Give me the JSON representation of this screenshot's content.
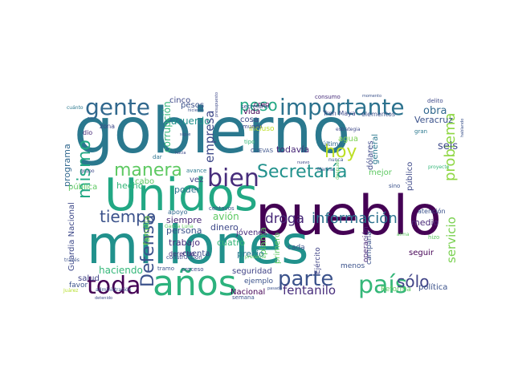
{
  "cloud": {
    "words": [
      {
        "text": "gobierno",
        "color": "#2a788e"
      },
      {
        "text": "pueblo",
        "color": "#440154"
      },
      {
        "text": "millones",
        "color": "#21918c"
      },
      {
        "text": "Unidos",
        "color": "#22a884"
      },
      {
        "text": "años",
        "color": "#2db27d"
      },
      {
        "text": "importante",
        "color": "#2c728e"
      },
      {
        "text": "toda",
        "color": "#440154"
      },
      {
        "text": "país",
        "color": "#35b779"
      },
      {
        "text": "parte",
        "color": "#3b528b"
      },
      {
        "text": "gente",
        "color": "#31688e"
      },
      {
        "text": "bien",
        "color": "#472d7b"
      },
      {
        "text": "mismo",
        "color": "#22a884"
      },
      {
        "text": "Secretaría",
        "color": "#21918c"
      },
      {
        "text": "problema",
        "color": "#8fd744"
      },
      {
        "text": "manera",
        "color": "#5ec962"
      },
      {
        "text": "tiempo",
        "color": "#3b528b"
      },
      {
        "text": "hoy",
        "color": "#bddf26"
      },
      {
        "text": "información",
        "color": "#2c728e"
      },
      {
        "text": "peso",
        "color": "#22a884"
      },
      {
        "text": "droga",
        "color": "#482878"
      },
      {
        "text": "fentanilo",
        "color": "#472d7b"
      },
      {
        "text": "sólo",
        "color": "#414487"
      },
      {
        "text": "servicio",
        "color": "#7ad151"
      },
      {
        "text": "Defensa",
        "color": "#3b528b"
      },
      {
        "text": "empresa",
        "color": "#3e4989"
      },
      {
        "text": "obra",
        "color": "#31688e"
      },
      {
        "text": "seis",
        "color": "#3e4989"
      },
      {
        "text": "programa",
        "color": "#31688e"
      },
      {
        "text": "corrupción",
        "color": "#35b779"
      },
      {
        "text": "acuerdo",
        "color": "#21918c"
      },
      {
        "text": "Guardia Nacional",
        "color": "#3e4989"
      },
      {
        "text": "haciendo",
        "color": "#35b779"
      },
      {
        "text": "avión",
        "color": "#5ec962"
      },
      {
        "text": "cuatro",
        "color": "#35b779"
      },
      {
        "text": "Veracruz",
        "color": "#3b528b"
      },
      {
        "text": "todavía",
        "color": "#482878"
      },
      {
        "text": "dinero",
        "color": "#3e4989"
      },
      {
        "text": "persona",
        "color": "#3b528b"
      },
      {
        "text": "siempre",
        "color": "#482878"
      },
      {
        "text": "trabajo",
        "color": "#472d7b"
      },
      {
        "text": "planta",
        "color": "#5ec962"
      },
      {
        "text": "precio",
        "color": "#2a788e"
      },
      {
        "text": "seguridad",
        "color": "#414487"
      },
      {
        "text": "hecho",
        "color": "#35b779"
      },
      {
        "text": "poder",
        "color": "#2c728e"
      },
      {
        "text": "familia",
        "color": "#7ad151"
      },
      {
        "text": "Nacional",
        "color": "#440154"
      },
      {
        "text": "política",
        "color": "#3b528b"
      },
      {
        "text": "medio",
        "color": "#482878"
      },
      {
        "text": "seguir",
        "color": "#440154"
      },
      {
        "text": "mejor",
        "color": "#5ec962"
      },
      {
        "text": "pesos",
        "color": "#3b528b"
      },
      {
        "text": "cinco",
        "color": "#3e4989"
      },
      {
        "text": "vida",
        "color": "#440154"
      },
      {
        "text": "cosa",
        "color": "#3e4989"
      },
      {
        "text": "primero",
        "color": "#5ec962"
      },
      {
        "text": "cuenta",
        "color": "#3e4989"
      },
      {
        "text": "jóvenes",
        "color": "#472d7b"
      },
      {
        "text": "pública",
        "color": "#5ec962"
      },
      {
        "text": "público",
        "color": "#3e4989"
      },
      {
        "text": "general",
        "color": "#2a788e"
      },
      {
        "text": "agua",
        "color": "#7ad151"
      },
      {
        "text": "dólares",
        "color": "#3e4989"
      },
      {
        "text": "vez",
        "color": "#414487"
      },
      {
        "text": "cabo",
        "color": "#5ec962"
      },
      {
        "text": "ejemplo",
        "color": "#3b528b"
      },
      {
        "text": "salud",
        "color": "#414487"
      },
      {
        "text": "favor",
        "color": "#3b528b"
      },
      {
        "text": "Reforma",
        "color": "#5ec962"
      },
      {
        "text": "menos",
        "color": "#3b528b"
      },
      {
        "text": "campaña",
        "color": "#3b528b"
      },
      {
        "text": "operación",
        "color": "#482878"
      },
      {
        "text": "Ejército",
        "color": "#414487"
      },
      {
        "text": "cada",
        "color": "#3b528b"
      },
      {
        "text": "apoyo",
        "color": "#31688e"
      },
      {
        "text": "derecho",
        "color": "#472d7b"
      },
      {
        "text": "creo",
        "color": "#440154"
      },
      {
        "text": "Tren Maya",
        "color": "#3e4989"
      },
      {
        "text": "elementos",
        "color": "#3b528b"
      },
      {
        "text": "incluso",
        "color": "#bddf26"
      },
      {
        "text": "último",
        "color": "#31688e"
      },
      {
        "text": "tipo",
        "color": "#35b779"
      },
      {
        "text": "mundo",
        "color": "#3e4989"
      },
      {
        "text": "CUEVAS",
        "color": "#3b528b"
      },
      {
        "text": "sino",
        "color": "#3b528b"
      },
      {
        "text": "atención",
        "color": "#3b528b"
      },
      {
        "text": "zona",
        "color": "#3e4989"
      },
      {
        "text": "dio",
        "color": "#482878"
      },
      {
        "text": "dar",
        "color": "#2c728e"
      },
      {
        "text": "avance",
        "color": "#2a788e"
      },
      {
        "text": "tramo",
        "color": "#3b528b"
      },
      {
        "text": "proceso",
        "color": "#3e4989"
      },
      {
        "text": "semana",
        "color": "#3b528b"
      },
      {
        "text": "secretario",
        "color": "#3b528b"
      },
      {
        "text": "consumo",
        "color": "#472d7b"
      },
      {
        "text": "delito",
        "color": "#3e4989"
      },
      {
        "text": "gran",
        "color": "#2a788e"
      },
      {
        "text": "nunca",
        "color": "#3b528b"
      },
      {
        "text": "estrategia",
        "color": "#3e4989"
      },
      {
        "text": "centavos",
        "color": "#3b528b"
      },
      {
        "text": "construcción",
        "color": "#3e4989"
      },
      {
        "text": "García Luna",
        "color": "#5ec962"
      },
      {
        "text": "administración",
        "color": "#3b528b"
      },
      {
        "text": "detenido",
        "color": "#3e4989"
      },
      {
        "text": "Juárez",
        "color": "#b5de2b"
      },
      {
        "text": "grupo",
        "color": "#3e4989"
      },
      {
        "text": "cuánto",
        "color": "#2a788e"
      },
      {
        "text": "hicieron",
        "color": "#3b528b"
      },
      {
        "text": "sigue",
        "color": "#3b528b"
      },
      {
        "text": "hacia",
        "color": "#3e4989"
      },
      {
        "text": "pasado",
        "color": "#3b528b"
      },
      {
        "text": "nuevo",
        "color": "#3e4989"
      },
      {
        "text": "Marina",
        "color": "#3b528b"
      },
      {
        "text": "hizo",
        "color": "#5ec962"
      },
      {
        "text": "proyecto",
        "color": "#35b779"
      },
      {
        "text": "momento",
        "color": "#3b528b"
      },
      {
        "text": "presupuesto",
        "color": "#3e4989"
      },
      {
        "text": "hablando",
        "color": "#3b528b"
      },
      {
        "text": "través",
        "color": "#3b528b"
      },
      {
        "text": "arma",
        "color": "#5ec962"
      },
      {
        "text": "presente",
        "color": "#5ec962"
      },
      {
        "text": "después",
        "color": "#5ec962"
      }
    ]
  }
}
